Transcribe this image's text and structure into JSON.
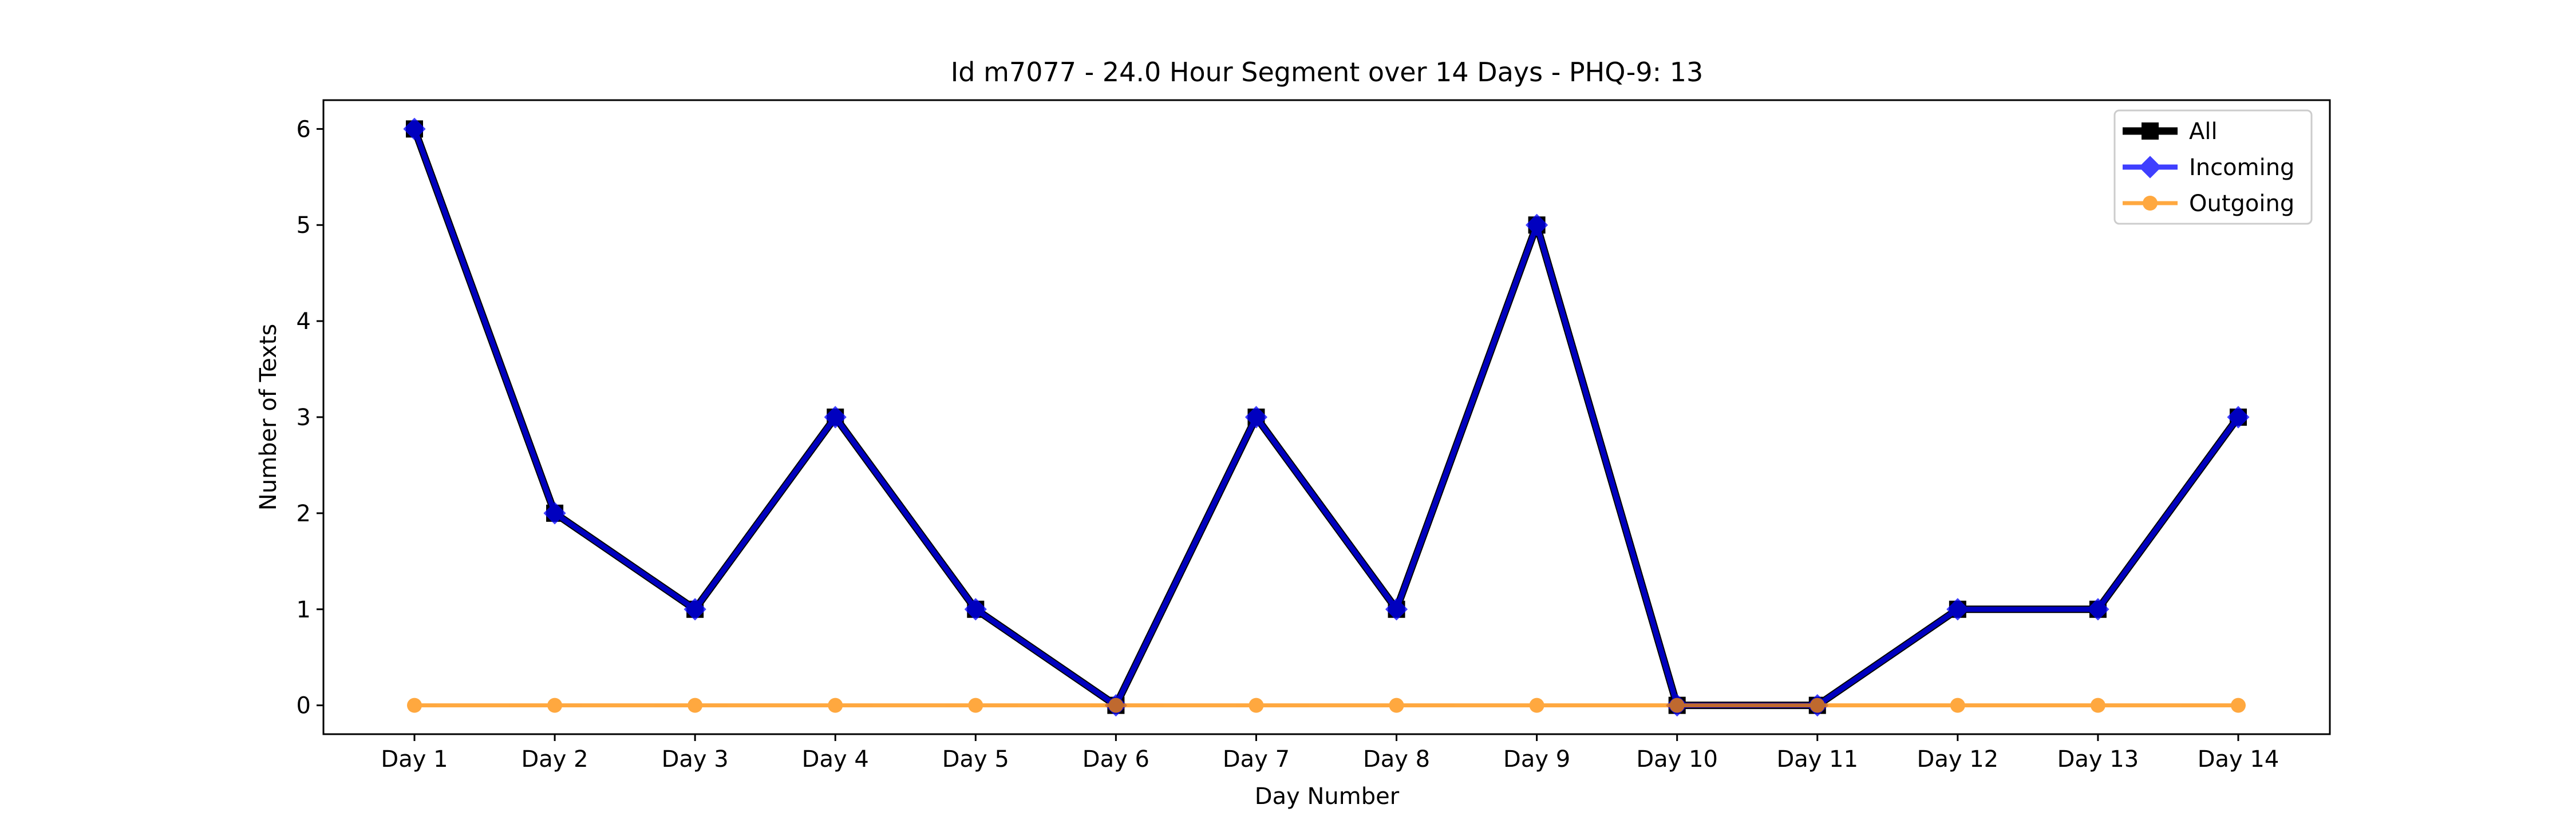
{
  "chart_data": {
    "type": "line",
    "title": "Id m7077 - 24.0 Hour Segment over 14 Days - PHQ-9: 13",
    "xlabel": "Day Number",
    "ylabel": "Number of Texts",
    "categories": [
      "Day 1",
      "Day 2",
      "Day 3",
      "Day 4",
      "Day 5",
      "Day 6",
      "Day 7",
      "Day 8",
      "Day 9",
      "Day 10",
      "Day 11",
      "Day 12",
      "Day 13",
      "Day 14"
    ],
    "ylim": [
      -0.3,
      6.3
    ],
    "yticks": [
      0,
      1,
      2,
      3,
      4,
      5,
      6
    ],
    "grid": false,
    "legend_position": "top-right",
    "series": [
      {
        "name": "All",
        "color": "#000000",
        "marker": "square",
        "values": [
          6,
          2,
          1,
          3,
          1,
          0,
          3,
          1,
          5,
          0,
          0,
          1,
          1,
          3
        ]
      },
      {
        "name": "Incoming",
        "color": "#0000ff",
        "marker": "diamond",
        "values": [
          6,
          2,
          1,
          3,
          1,
          0,
          3,
          1,
          5,
          0,
          0,
          1,
          1,
          3
        ]
      },
      {
        "name": "Outgoing",
        "color": "#ff8c00",
        "marker": "circle",
        "values": [
          0,
          0,
          0,
          0,
          0,
          0,
          0,
          0,
          0,
          0,
          0,
          0,
          0,
          0
        ]
      }
    ]
  }
}
